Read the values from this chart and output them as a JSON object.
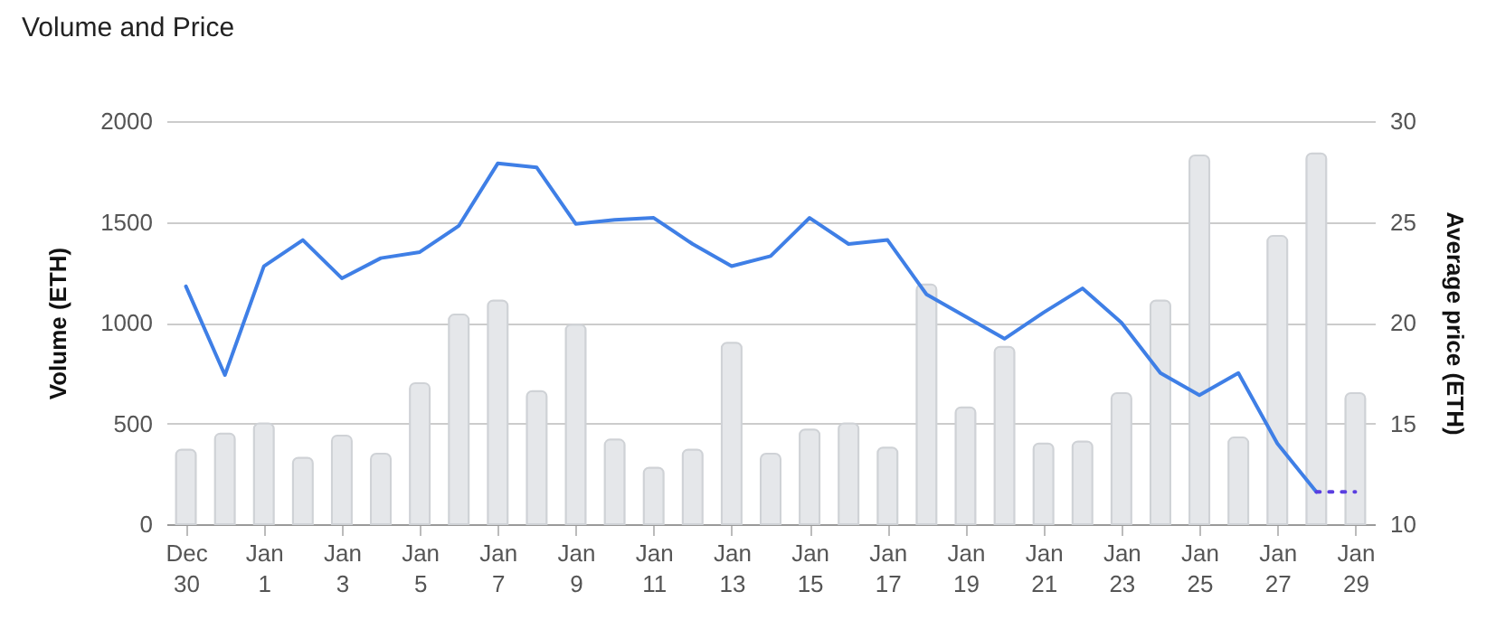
{
  "chart_data": {
    "type": "bar",
    "title": "Volume and Price",
    "ylabel": "Volume (ETH)",
    "y2label": "Average price (ETH)",
    "categories": [
      "Dec 30",
      null,
      "Jan 1",
      null,
      "Jan 3",
      null,
      "Jan 5",
      null,
      "Jan 7",
      null,
      "Jan 9",
      null,
      "Jan 11",
      null,
      "Jan 13",
      null,
      "Jan 15",
      null,
      "Jan 17",
      null,
      "Jan 19",
      null,
      "Jan 21",
      null,
      "Jan 23",
      null,
      "Jan 25",
      null,
      "Jan 27",
      null,
      "Jan 29"
    ],
    "series": [
      {
        "color": "#e5e7ea",
        "values": [
          370,
          450,
          500,
          330,
          440,
          350,
          700,
          1040,
          1110,
          660,
          990,
          420,
          280,
          370,
          900,
          350,
          470,
          500,
          380,
          1190,
          580,
          880,
          400,
          410,
          650,
          1110,
          1830,
          430,
          1430,
          1840,
          650
        ]
      },
      {
        "type": "line",
        "axis": "y2",
        "color": "#3f7fe6",
        "line_style": "solid",
        "values": [
          21.8,
          17.4,
          22.8,
          24.1,
          22.2,
          23.2,
          23.5,
          24.8,
          27.9,
          27.7,
          24.9,
          25.1,
          25.2,
          23.9,
          22.8,
          23.3,
          25.2,
          23.9,
          24.1,
          21.4,
          20.3,
          19.2,
          20.5,
          21.7,
          20.0,
          17.5,
          16.4,
          17.5,
          14.0,
          11.6,
          null
        ]
      },
      {
        "type": "line",
        "axis": "y2",
        "color": "#5a3fe0",
        "line_style": "dotted",
        "values": [
          null,
          null,
          null,
          null,
          null,
          null,
          null,
          null,
          null,
          null,
          null,
          null,
          null,
          null,
          null,
          null,
          null,
          null,
          null,
          null,
          null,
          null,
          null,
          null,
          null,
          null,
          null,
          null,
          null,
          11.6,
          11.6
        ]
      }
    ],
    "ylim": [
      0,
      2000
    ],
    "yticks": [
      0,
      500,
      1000,
      1500,
      2000
    ],
    "y2lim": [
      10,
      30
    ],
    "y2ticks": [
      10,
      15,
      20,
      25,
      30
    ],
    "grid": "y"
  }
}
